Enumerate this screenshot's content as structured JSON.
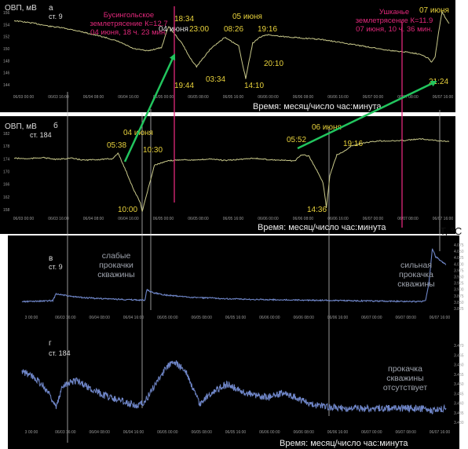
{
  "colors": {
    "background": "#000000",
    "orp_line": "#c8c88a",
    "temp_line": "#6f86c8",
    "quake_line": "#e0287a",
    "quake_text": "#e0287a",
    "time_text": "#e8d23c",
    "arrow": "#22c55e",
    "guide": "#bdbdbd",
    "label": "#dddddd",
    "tick": "#9a9a9a"
  },
  "axis_caption": "Время: месяц/число час:минута",
  "temp_unit": "T, °C",
  "x_ticks": [
    "06/03 00:00",
    "06/03 16:00",
    "06/04 08:00",
    "06/04 16:00",
    "06/05 00:00",
    "06/05 08:00",
    "06/05 16:00",
    "06/06 00:00",
    "06/06 08:00",
    "06/06 16:00",
    "06/07 00:00",
    "06/07 08:00",
    "06/07 16:00"
  ],
  "x_ticks_temp": [
    "3 00:00",
    "06/03 16:00",
    "06/04 08:00",
    "06/04 16:00",
    "06/05 00:00",
    "06/05 08:00",
    "06/05 16:00",
    "06/06 00:00",
    "06/06 08:00",
    "06/06 16:00",
    "06/07 00:00",
    "06/07 08:00",
    "06/07 16:00"
  ],
  "chart_data": [
    {
      "type": "line",
      "panel": "а",
      "ylabel": "ОВП, мВ",
      "station": "ст. 9",
      "ylim": [
        142,
        156
      ],
      "y_ticks": [
        "156",
        "154",
        "152",
        "150",
        "148",
        "146",
        "144"
      ],
      "x_unit": "hours since 06/03 00:00",
      "x_labels_note": "see x_ticks",
      "series": [
        {
          "values_x": [
            0,
            6,
            10,
            14,
            18,
            22,
            26,
            30,
            34,
            38,
            42,
            44,
            48,
            50,
            52,
            56,
            60,
            64,
            66,
            68,
            70,
            72,
            76,
            80,
            84,
            88,
            92,
            96,
            100,
            104,
            108,
            112,
            116,
            118,
            119,
            120,
            121,
            122,
            124
          ],
          "values_y": [
            154,
            153.5,
            153,
            152.7,
            152.2,
            151.6,
            151.0,
            150.2,
            149.0,
            148.6,
            149.2,
            153.0,
            149.8,
            147.5,
            145.8,
            149.0,
            151.0,
            149.5,
            143.7,
            150.0,
            151.0,
            151.5,
            151.2,
            151.0,
            150.8,
            150.6,
            150.2,
            149.8,
            149.4,
            149.0,
            148.6,
            148.4,
            148.0,
            147.3,
            146.6,
            147.5,
            152.0,
            155.5,
            153.5
          ]
        }
      ],
      "annotations": [
        {
          "text": "18:34",
          "x": 42.6
        },
        {
          "text": "19:44",
          "x": 43.7
        },
        {
          "text": "23:00",
          "x": 47
        },
        {
          "text": "03:34",
          "x": 51.6
        },
        {
          "text": "08:26",
          "x": 56.4
        },
        {
          "text": "14:10",
          "x": 62.2
        },
        {
          "text": "19:16",
          "x": 67.3
        },
        {
          "text": "20:10",
          "x": 68.2
        },
        {
          "text": "21:24",
          "x": 117.4
        }
      ],
      "date_labels": [
        "04 июня",
        "05 июня",
        "07 июня"
      ],
      "events": [
        {
          "x": 42.4,
          "lines": [
            "Бусингольское",
            "землетрясение К=12.7",
            "04 июня, 18 ч. 23 мин."
          ]
        },
        {
          "x": 106.6,
          "lines": [
            "Ушканье",
            "землетрясение К=11.9",
            "07 июня, 10 ч. 36 мин."
          ]
        }
      ]
    },
    {
      "type": "line",
      "panel": "б",
      "ylabel": "ОВП, мВ",
      "station": "ст. 184",
      "ylim": [
        158,
        184
      ],
      "y_ticks": [
        "182",
        "178",
        "174",
        "170",
        "166",
        "162",
        "158"
      ],
      "series": [
        {
          "values_x": [
            0,
            4,
            8,
            12,
            16,
            20,
            24,
            28,
            29.6,
            32,
            34,
            36,
            36.5,
            40,
            44,
            48,
            52,
            56,
            60,
            64,
            68,
            72,
            76,
            80,
            82,
            84,
            86,
            88,
            88.6,
            89,
            90,
            92,
            94,
            96,
            100,
            104,
            108,
            112,
            116,
            120,
            124
          ],
          "values_y": [
            175,
            174.8,
            175.2,
            174.6,
            175,
            174.4,
            174.6,
            174.8,
            176.5,
            171,
            166,
            162,
            159.5,
            173,
            174.2,
            174.6,
            174.4,
            174.8,
            174.3,
            174.6,
            175,
            174.6,
            174.4,
            174.2,
            176.0,
            175.6,
            172,
            168,
            164,
            160.5,
            170,
            176,
            177,
            178.5,
            179.5,
            180,
            180,
            180.2,
            180.6,
            180.2,
            179.8
          ]
        }
      ],
      "annotations": [
        {
          "text": "05:38",
          "x": 29.6
        },
        {
          "text": "10:00",
          "x": 34
        },
        {
          "text": "10:30",
          "x": 34.5
        },
        {
          "text": "05:52",
          "x": 77.9
        },
        {
          "text": "14:36",
          "x": 86.6
        },
        {
          "text": "19:16",
          "x": 91.3
        }
      ],
      "date_labels": [
        "04 июня",
        "06 июня"
      ]
    },
    {
      "type": "line",
      "panel": "в",
      "station": "ст. 9",
      "ylim": [
        3.825,
        4.075
      ],
      "y_ticks": [
        "4.075",
        "4.050",
        "4.025",
        "4.000",
        "3.975",
        "3.950",
        "3.925",
        "3.900",
        "3.875",
        "3.850",
        "3.825"
      ],
      "labels": [
        "слабые прокачки скважины",
        "сильная прокачка скважины"
      ],
      "series": [
        {
          "values_x": [
            0,
            6,
            9,
            10,
            14,
            18,
            22,
            26,
            30,
            34,
            36,
            36.5,
            38,
            42,
            46,
            50,
            56,
            62,
            68,
            74,
            80,
            86,
            92,
            98,
            104,
            110,
            116,
            118,
            119,
            120,
            121,
            124
          ],
          "values_y": [
            3.86,
            3.862,
            3.864,
            3.89,
            3.88,
            3.875,
            3.872,
            3.87,
            3.868,
            3.866,
            3.866,
            3.905,
            3.895,
            3.885,
            3.88,
            3.876,
            3.873,
            3.87,
            3.868,
            3.867,
            3.866,
            3.865,
            3.864,
            3.863,
            3.862,
            3.861,
            3.86,
            3.862,
            3.93,
            4.06,
            4.03,
            4.0
          ]
        }
      ]
    },
    {
      "type": "line",
      "panel": "г",
      "station": "ст. 184",
      "ylim": [
        3.43,
        3.47
      ],
      "y_ticks": [
        "3.470",
        "3.465",
        "3.460",
        "3.455",
        "3.450",
        "3.445",
        "3.440",
        "3.435",
        "3.430"
      ],
      "labels": [
        "прокачка скважины отсутствует"
      ],
      "series": [
        {
          "values_x": [
            0,
            4,
            8,
            10,
            12,
            16,
            20,
            24,
            28,
            32,
            34,
            36,
            40,
            44,
            48,
            50,
            52,
            56,
            60,
            64,
            68,
            72,
            76,
            80,
            84,
            88,
            92,
            96,
            100,
            104,
            108,
            112,
            116,
            120,
            124
          ],
          "values_y": [
            3.455,
            3.452,
            3.445,
            3.438,
            3.449,
            3.451,
            3.447,
            3.444,
            3.442,
            3.44,
            3.439,
            3.441,
            3.452,
            3.46,
            3.455,
            3.447,
            3.44,
            3.446,
            3.449,
            3.446,
            3.444,
            3.443,
            3.445,
            3.443,
            3.44,
            3.439,
            3.438,
            3.438,
            3.438,
            3.438,
            3.438,
            3.438,
            3.438,
            3.437,
            3.438
          ]
        }
      ]
    }
  ]
}
